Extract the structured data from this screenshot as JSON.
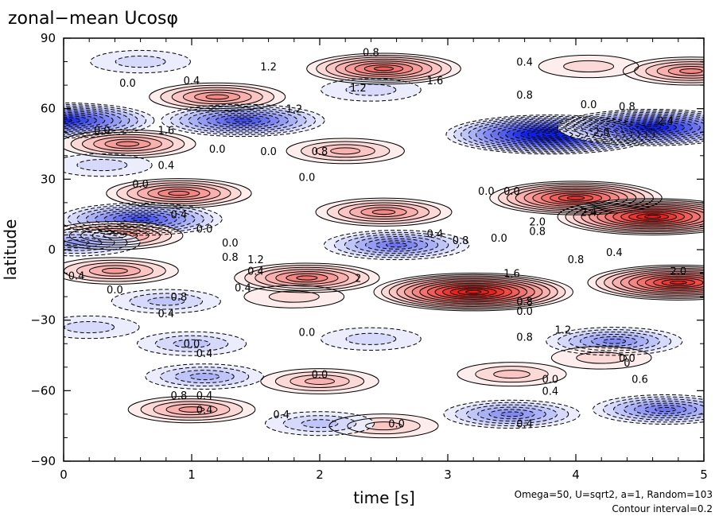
{
  "chart_data": {
    "type": "heatmap",
    "title": "zonal−mean Ucosφ",
    "xlabel": "time [s]",
    "ylabel": "latitude",
    "xlim": [
      0,
      5
    ],
    "ylim": [
      -90,
      90
    ],
    "x_ticks": [
      "0",
      "1",
      "2",
      "3",
      "4",
      "5"
    ],
    "y_ticks": [
      "90",
      "60",
      "30",
      "0",
      "−30",
      "−60",
      "−90"
    ],
    "annotations": [
      "Omega=50, U=sqrt2, a=1, Random=103",
      "Contour interval=0.2"
    ],
    "colors": {
      "positive": "#e8201a",
      "negative": "#1020e0",
      "zero": "#ffffff"
    },
    "contour_interval": 0.2,
    "features": [
      {
        "t": 2.5,
        "lat": 77,
        "value": 1.6
      },
      {
        "t": 4.9,
        "lat": 76,
        "value": 1.2
      },
      {
        "t": 1.2,
        "lat": 65,
        "value": 1.2
      },
      {
        "t": 0.0,
        "lat": 55,
        "value": -2.2
      },
      {
        "t": 1.4,
        "lat": 55,
        "value": -1.8
      },
      {
        "t": 3.8,
        "lat": 49,
        "value": -2.8
      },
      {
        "t": 4.6,
        "lat": 52,
        "value": -2.4
      },
      {
        "t": 0.5,
        "lat": 45,
        "value": 1.2
      },
      {
        "t": 2.2,
        "lat": 42,
        "value": 0.8
      },
      {
        "t": 0.3,
        "lat": 36,
        "value": -0.4
      },
      {
        "t": 0.9,
        "lat": 24,
        "value": 1.4
      },
      {
        "t": 4.0,
        "lat": 22,
        "value": 2.0
      },
      {
        "t": 4.6,
        "lat": 14,
        "value": 2.4
      },
      {
        "t": 2.5,
        "lat": 16,
        "value": 1.2
      },
      {
        "t": 0.6,
        "lat": 13,
        "value": -1.8
      },
      {
        "t": 0.4,
        "lat": 6,
        "value": 1.2
      },
      {
        "t": 2.6,
        "lat": 2,
        "value": -1.4
      },
      {
        "t": 0.1,
        "lat": 3,
        "value": -1.0
      },
      {
        "t": 0.4,
        "lat": -9,
        "value": 1.0
      },
      {
        "t": 1.9,
        "lat": -12,
        "value": 1.4
      },
      {
        "t": 3.2,
        "lat": -18,
        "value": 2.6
      },
      {
        "t": 4.8,
        "lat": -14,
        "value": 2.2
      },
      {
        "t": 0.8,
        "lat": -22,
        "value": -0.6
      },
      {
        "t": 1.8,
        "lat": -20,
        "value": 0.4
      },
      {
        "t": 4.3,
        "lat": -39,
        "value": -1.2
      },
      {
        "t": 2.4,
        "lat": -38,
        "value": -0.4
      },
      {
        "t": 1.0,
        "lat": -40,
        "value": -0.6
      },
      {
        "t": 0.2,
        "lat": -33,
        "value": -0.4
      },
      {
        "t": 2.0,
        "lat": -56,
        "value": 0.8
      },
      {
        "t": 3.5,
        "lat": -53,
        "value": 0.6
      },
      {
        "t": 1.1,
        "lat": -54,
        "value": -0.8
      },
      {
        "t": 4.7,
        "lat": -68,
        "value": -1.4
      },
      {
        "t": 3.5,
        "lat": -70,
        "value": -1.2
      },
      {
        "t": 1.0,
        "lat": -68,
        "value": 1.0
      },
      {
        "t": 2.5,
        "lat": -75,
        "value": 0.6
      },
      {
        "t": 2.0,
        "lat": -74,
        "value": -0.6
      },
      {
        "t": 4.2,
        "lat": -46,
        "value": 0.4
      },
      {
        "t": 0.6,
        "lat": 80,
        "value": -0.4
      },
      {
        "t": 2.4,
        "lat": 68,
        "value": -0.4
      },
      {
        "t": 4.1,
        "lat": 78,
        "value": 0.4
      }
    ],
    "contour_labels": [
      {
        "t": 2.4,
        "lat": 84,
        "text": "0.8"
      },
      {
        "t": 3.6,
        "lat": 80,
        "text": "0.4"
      },
      {
        "t": 1.6,
        "lat": 78,
        "text": "1.2"
      },
      {
        "t": 0.5,
        "lat": 71,
        "text": "0.0"
      },
      {
        "t": 1.0,
        "lat": 72,
        "text": "0.4"
      },
      {
        "t": 2.3,
        "lat": 69,
        "text": "1.2"
      },
      {
        "t": 2.9,
        "lat": 72,
        "text": "1.6"
      },
      {
        "t": 3.6,
        "lat": 66,
        "text": "0.8"
      },
      {
        "t": 4.1,
        "lat": 62,
        "text": "0.0"
      },
      {
        "t": 4.4,
        "lat": 61,
        "text": "0.8"
      },
      {
        "t": 1.8,
        "lat": 60,
        "text": "1.2"
      },
      {
        "t": 0.3,
        "lat": 51,
        "text": "0.0"
      },
      {
        "t": 0.8,
        "lat": 51,
        "text": "1.6"
      },
      {
        "t": 4.2,
        "lat": 50,
        "text": "2.0"
      },
      {
        "t": 4.7,
        "lat": 55,
        "text": "2.4"
      },
      {
        "t": 1.2,
        "lat": 43,
        "text": "0.0"
      },
      {
        "t": 1.6,
        "lat": 42,
        "text": "0.0"
      },
      {
        "t": 2.0,
        "lat": 42,
        "text": "0.8"
      },
      {
        "t": 0.8,
        "lat": 36,
        "text": "0.4"
      },
      {
        "t": 1.9,
        "lat": 31,
        "text": "0.0"
      },
      {
        "t": 0.6,
        "lat": 28,
        "text": "0.0"
      },
      {
        "t": 3.3,
        "lat": 25,
        "text": "0.0"
      },
      {
        "t": 3.5,
        "lat": 25,
        "text": "0.0"
      },
      {
        "t": 4.1,
        "lat": 16,
        "text": "2.4"
      },
      {
        "t": 3.7,
        "lat": 12,
        "text": "2.0"
      },
      {
        "t": 3.7,
        "lat": 8,
        "text": "0.8"
      },
      {
        "t": 0.9,
        "lat": 15,
        "text": "0.4"
      },
      {
        "t": 1.1,
        "lat": 9,
        "text": "0.0"
      },
      {
        "t": 1.3,
        "lat": 3,
        "text": "0.0"
      },
      {
        "t": 2.9,
        "lat": 7,
        "text": "0.4"
      },
      {
        "t": 3.1,
        "lat": 4,
        "text": "0.8"
      },
      {
        "t": 3.4,
        "lat": 5,
        "text": "0.0"
      },
      {
        "t": 1.3,
        "lat": -3,
        "text": "0.8"
      },
      {
        "t": 1.5,
        "lat": -4,
        "text": "1.2"
      },
      {
        "t": 1.5,
        "lat": -9,
        "text": "0.4"
      },
      {
        "t": 4.0,
        "lat": -4,
        "text": "0.8"
      },
      {
        "t": 4.3,
        "lat": -1,
        "text": "0.4"
      },
      {
        "t": 0.1,
        "lat": -11,
        "text": "0.4"
      },
      {
        "t": 2.3,
        "lat": -12,
        "text": "2"
      },
      {
        "t": 3.5,
        "lat": -10,
        "text": "1.6"
      },
      {
        "t": 4.8,
        "lat": -9,
        "text": "2.0"
      },
      {
        "t": 0.4,
        "lat": -17,
        "text": "0.0"
      },
      {
        "t": 0.9,
        "lat": -20,
        "text": "0.8"
      },
      {
        "t": 1.4,
        "lat": -16,
        "text": "0.4"
      },
      {
        "t": 3.6,
        "lat": -22,
        "text": "0.8"
      },
      {
        "t": 3.6,
        "lat": -26,
        "text": "0.0"
      },
      {
        "t": 0.8,
        "lat": -27,
        "text": "0.4"
      },
      {
        "t": 1.9,
        "lat": -35,
        "text": "0.0"
      },
      {
        "t": 3.6,
        "lat": -37,
        "text": "0.8"
      },
      {
        "t": 3.9,
        "lat": -34,
        "text": "1.2"
      },
      {
        "t": 1.0,
        "lat": -40,
        "text": "0.0"
      },
      {
        "t": 1.1,
        "lat": -44,
        "text": "0.4"
      },
      {
        "t": 4.4,
        "lat": -46,
        "text": "0.0"
      },
      {
        "t": 4.4,
        "lat": -48,
        "text": "0"
      },
      {
        "t": 2.0,
        "lat": -53,
        "text": "0.0"
      },
      {
        "t": 3.8,
        "lat": -55,
        "text": "0.0"
      },
      {
        "t": 4.5,
        "lat": -55,
        "text": "0.6"
      },
      {
        "t": 3.8,
        "lat": -60,
        "text": "0.4"
      },
      {
        "t": 0.9,
        "lat": -62,
        "text": "0.8"
      },
      {
        "t": 1.1,
        "lat": -62,
        "text": "0.4"
      },
      {
        "t": 1.1,
        "lat": -68,
        "text": "0.4"
      },
      {
        "t": 1.7,
        "lat": -70,
        "text": "0.4"
      },
      {
        "t": 2.6,
        "lat": -74,
        "text": "0.0"
      },
      {
        "t": 3.6,
        "lat": -74,
        "text": "0.4"
      }
    ]
  }
}
